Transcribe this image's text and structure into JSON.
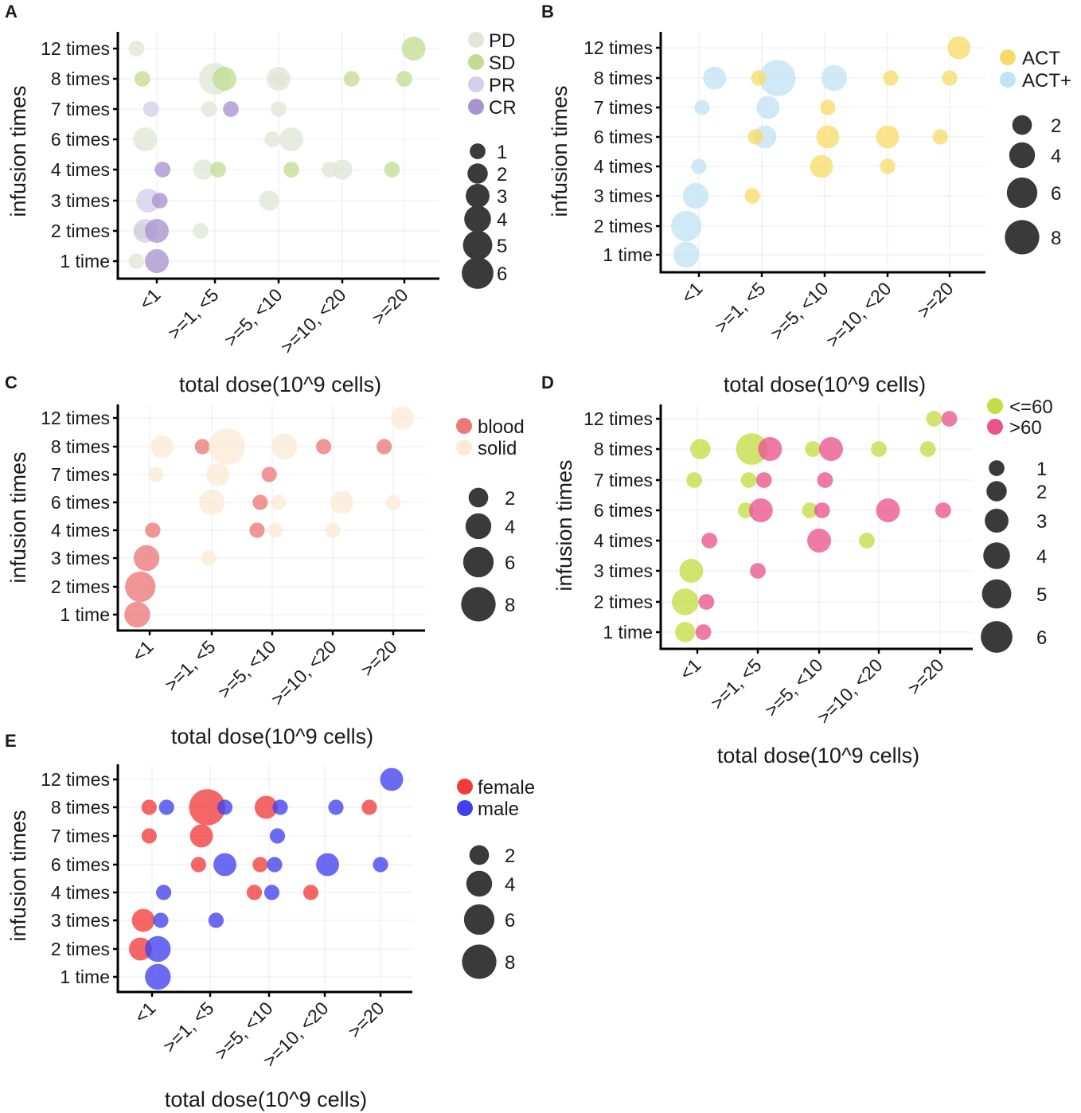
{
  "figure": {
    "x_categories": [
      "<1",
      ">=1, <5",
      ">=5, <10",
      ">=10, <20",
      ">=20"
    ],
    "y_categories_a": [
      "1 time",
      "2 times",
      "3 times",
      "4 times",
      "6 times",
      "7 times",
      "8 times",
      "12 times"
    ]
  },
  "chart_data": [
    {
      "panel": "A",
      "type": "scatter",
      "title": "",
      "xlabel": "total dose(10^9 cells)",
      "ylabel": "infusion times",
      "categories_x": [
        "<1",
        ">=1, <5",
        ">=5, <10",
        ">=10, <20",
        ">=20"
      ],
      "categories_y": [
        "1 time",
        "2 times",
        "3 times",
        "4 times",
        "6 times",
        "7 times",
        "8 times",
        "12 times"
      ],
      "groups": [
        {
          "name": "PD",
          "color": "#e2e6d6"
        },
        {
          "name": "SD",
          "color": "#c3dc95"
        },
        {
          "name": "PR",
          "color": "#d3d0ec"
        },
        {
          "name": "CR",
          "color": "#a893cf"
        }
      ],
      "size_legend": [
        1,
        2,
        3,
        4,
        5,
        6
      ],
      "points": [
        {
          "g": 0,
          "x": 0.65,
          "y": 7,
          "n": 1
        },
        {
          "g": 0,
          "x": 0.8,
          "y": 4,
          "n": 3
        },
        {
          "g": 0,
          "x": 2.9,
          "y": 4,
          "n": 1
        },
        {
          "g": 0,
          "x": 2.0,
          "y": 6,
          "n": 6
        },
        {
          "g": 0,
          "x": 1.8,
          "y": 3,
          "n": 2
        },
        {
          "g": 0,
          "x": 1.9,
          "y": 5,
          "n": 1
        },
        {
          "g": 0,
          "x": 3.0,
          "y": 6,
          "n": 1
        },
        {
          "g": 0,
          "x": 3.2,
          "y": 4,
          "n": 3
        },
        {
          "g": 0,
          "x": 3.0,
          "y": 5,
          "n": 1
        },
        {
          "g": 0,
          "x": 3.0,
          "y": 6,
          "n": 3
        },
        {
          "g": 0,
          "x": 2.85,
          "y": 2,
          "n": 2
        },
        {
          "g": 0,
          "x": 3.8,
          "y": 3,
          "n": 1
        },
        {
          "g": 0,
          "x": 4.0,
          "y": 3,
          "n": 2
        },
        {
          "g": 0,
          "x": 1.75,
          "y": 1,
          "n": 1
        },
        {
          "g": 0,
          "x": 0.65,
          "y": 0,
          "n": 1
        },
        {
          "g": 1,
          "x": 0.75,
          "y": 6,
          "n": 1
        },
        {
          "g": 1,
          "x": 2.15,
          "y": 6,
          "n": 3
        },
        {
          "g": 1,
          "x": 2.05,
          "y": 3,
          "n": 1
        },
        {
          "g": 1,
          "x": 3.2,
          "y": 3,
          "n": 1
        },
        {
          "g": 1,
          "x": 4.15,
          "y": 6,
          "n": 1
        },
        {
          "g": 1,
          "x": 4.8,
          "y": 3,
          "n": 1
        },
        {
          "g": 1,
          "x": 5.0,
          "y": 6,
          "n": 1
        },
        {
          "g": 1,
          "x": 5.15,
          "y": 7,
          "n": 3
        },
        {
          "g": 1,
          "x": 0.75,
          "y": 1,
          "n": 1
        },
        {
          "g": 2,
          "x": 0.85,
          "y": 2,
          "n": 3
        },
        {
          "g": 2,
          "x": 0.8,
          "y": 1,
          "n": 3
        },
        {
          "g": 2,
          "x": 0.9,
          "y": 5,
          "n": 1
        },
        {
          "g": 3,
          "x": 1.0,
          "y": 0,
          "n": 3
        },
        {
          "g": 3,
          "x": 1.0,
          "y": 1,
          "n": 3
        },
        {
          "g": 3,
          "x": 1.05,
          "y": 2,
          "n": 1
        },
        {
          "g": 3,
          "x": 1.1,
          "y": 3,
          "n": 1
        },
        {
          "g": 3,
          "x": 2.25,
          "y": 5,
          "n": 1
        }
      ]
    },
    {
      "panel": "B",
      "type": "scatter",
      "title": "",
      "xlabel": "total dose(10^9 cells)",
      "ylabel": "infusion times",
      "categories_x": [
        "<1",
        ">=1, <5",
        ">=5, <10",
        ">=10, <20",
        ">=20"
      ],
      "categories_y": [
        "1 time",
        "2 times",
        "3 times",
        "4 times",
        "6 times",
        "7 times",
        "8 times",
        "12 times"
      ],
      "groups": [
        {
          "name": "ACT",
          "color": "#f7db6a"
        },
        {
          "name": "ACT+",
          "color": "#c3e3f5"
        }
      ],
      "size_legend": [
        2,
        4,
        6,
        8
      ],
      "points": [
        {
          "g": 1,
          "x": 0.8,
          "y": 0,
          "n": 4
        },
        {
          "g": 1,
          "x": 0.8,
          "y": 1,
          "n": 6
        },
        {
          "g": 1,
          "x": 0.95,
          "y": 2,
          "n": 4
        },
        {
          "g": 1,
          "x": 1.0,
          "y": 3,
          "n": 1
        },
        {
          "g": 1,
          "x": 1.05,
          "y": 5,
          "n": 1
        },
        {
          "g": 1,
          "x": 1.25,
          "y": 6,
          "n": 3
        },
        {
          "g": 1,
          "x": 2.05,
          "y": 4,
          "n": 3
        },
        {
          "g": 1,
          "x": 2.1,
          "y": 5,
          "n": 3
        },
        {
          "g": 1,
          "x": 2.25,
          "y": 6,
          "n": 9
        },
        {
          "g": 1,
          "x": 3.15,
          "y": 6,
          "n": 4
        },
        {
          "g": 0,
          "x": 1.85,
          "y": 2,
          "n": 1
        },
        {
          "g": 0,
          "x": 1.9,
          "y": 4,
          "n": 1
        },
        {
          "g": 0,
          "x": 1.95,
          "y": 6,
          "n": 1
        },
        {
          "g": 0,
          "x": 2.95,
          "y": 3,
          "n": 3
        },
        {
          "g": 0,
          "x": 3.05,
          "y": 4,
          "n": 3
        },
        {
          "g": 0,
          "x": 3.05,
          "y": 5,
          "n": 1
        },
        {
          "g": 0,
          "x": 4.0,
          "y": 3,
          "n": 1
        },
        {
          "g": 0,
          "x": 4.05,
          "y": 6,
          "n": 1
        },
        {
          "g": 0,
          "x": 4.0,
          "y": 4,
          "n": 3
        },
        {
          "g": 0,
          "x": 4.85,
          "y": 4,
          "n": 1
        },
        {
          "g": 0,
          "x": 5.0,
          "y": 6,
          "n": 1
        },
        {
          "g": 0,
          "x": 5.15,
          "y": 7,
          "n": 3
        }
      ]
    },
    {
      "panel": "C",
      "type": "scatter",
      "title": "",
      "xlabel": "total dose(10^9 cells)",
      "ylabel": "infusion times",
      "categories_x": [
        "<1",
        ">=1, <5",
        ">=5, <10",
        ">=10, <20",
        ">=20"
      ],
      "categories_y": [
        "1 time",
        "2 times",
        "3 times",
        "4 times",
        "6 times",
        "7 times",
        "8 times",
        "12 times"
      ],
      "groups": [
        {
          "name": "blood",
          "color": "#ec7878"
        },
        {
          "name": "solid",
          "color": "#fbebd6"
        }
      ],
      "size_legend": [
        2,
        4,
        6,
        8
      ],
      "points": [
        {
          "g": 0,
          "x": 0.8,
          "y": 0,
          "n": 4
        },
        {
          "g": 0,
          "x": 0.85,
          "y": 1,
          "n": 6
        },
        {
          "g": 0,
          "x": 0.95,
          "y": 2,
          "n": 4
        },
        {
          "g": 0,
          "x": 1.05,
          "y": 3,
          "n": 1
        },
        {
          "g": 0,
          "x": 1.85,
          "y": 6,
          "n": 1
        },
        {
          "g": 0,
          "x": 2.8,
          "y": 4,
          "n": 1
        },
        {
          "g": 0,
          "x": 2.75,
          "y": 3,
          "n": 1
        },
        {
          "g": 0,
          "x": 2.95,
          "y": 5,
          "n": 1
        },
        {
          "g": 0,
          "x": 3.85,
          "y": 6,
          "n": 1
        },
        {
          "g": 0,
          "x": 4.85,
          "y": 6,
          "n": 1
        },
        {
          "g": 1,
          "x": 1.2,
          "y": 6,
          "n": 3
        },
        {
          "g": 1,
          "x": 1.1,
          "y": 5,
          "n": 1
        },
        {
          "g": 1,
          "x": 1.95,
          "y": 2,
          "n": 1
        },
        {
          "g": 1,
          "x": 2.0,
          "y": 4,
          "n": 4
        },
        {
          "g": 1,
          "x": 2.1,
          "y": 5,
          "n": 3
        },
        {
          "g": 1,
          "x": 2.25,
          "y": 6,
          "n": 9
        },
        {
          "g": 1,
          "x": 3.05,
          "y": 3,
          "n": 1
        },
        {
          "g": 1,
          "x": 3.1,
          "y": 4,
          "n": 1
        },
        {
          "g": 1,
          "x": 3.2,
          "y": 6,
          "n": 4
        },
        {
          "g": 1,
          "x": 4.0,
          "y": 3,
          "n": 1
        },
        {
          "g": 1,
          "x": 4.15,
          "y": 4,
          "n": 3
        },
        {
          "g": 1,
          "x": 5.0,
          "y": 4,
          "n": 1
        },
        {
          "g": 1,
          "x": 5.15,
          "y": 7,
          "n": 3
        }
      ]
    },
    {
      "panel": "D",
      "type": "scatter",
      "title": "",
      "xlabel": "total dose(10^9 cells)",
      "ylabel": "infusion times",
      "categories_x": [
        "<1",
        ">=1, <5",
        ">=5, <10",
        ">=10, <20",
        ">=20"
      ],
      "categories_y": [
        "1 time",
        "2 times",
        "3 times",
        "4 times",
        "6 times",
        "7 times",
        "8 times",
        "12 times"
      ],
      "groups": [
        {
          "name": "<=60",
          "color": "#c4dd44"
        },
        {
          "name": ">60",
          "color": "#e9548c"
        }
      ],
      "size_legend": [
        1,
        2,
        3,
        4,
        5,
        6
      ],
      "points": [
        {
          "g": 0,
          "x": 0.8,
          "y": 0,
          "n": 2
        },
        {
          "g": 0,
          "x": 0.8,
          "y": 1,
          "n": 4
        },
        {
          "g": 0,
          "x": 0.9,
          "y": 2,
          "n": 3
        },
        {
          "g": 0,
          "x": 0.95,
          "y": 5,
          "n": 1
        },
        {
          "g": 0,
          "x": 1.05,
          "y": 6,
          "n": 2
        },
        {
          "g": 0,
          "x": 1.8,
          "y": 4,
          "n": 1
        },
        {
          "g": 0,
          "x": 1.85,
          "y": 5,
          "n": 1
        },
        {
          "g": 0,
          "x": 1.9,
          "y": 6,
          "n": 6
        },
        {
          "g": 0,
          "x": 2.85,
          "y": 4,
          "n": 1
        },
        {
          "g": 0,
          "x": 2.9,
          "y": 6,
          "n": 1
        },
        {
          "g": 0,
          "x": 3.8,
          "y": 3,
          "n": 1
        },
        {
          "g": 0,
          "x": 4.0,
          "y": 6,
          "n": 1
        },
        {
          "g": 0,
          "x": 4.8,
          "y": 6,
          "n": 1
        },
        {
          "g": 0,
          "x": 4.9,
          "y": 7,
          "n": 1
        },
        {
          "g": 1,
          "x": 1.1,
          "y": 0,
          "n": 1
        },
        {
          "g": 1,
          "x": 1.15,
          "y": 1,
          "n": 1
        },
        {
          "g": 1,
          "x": 1.2,
          "y": 3,
          "n": 1
        },
        {
          "g": 1,
          "x": 2.0,
          "y": 2,
          "n": 1
        },
        {
          "g": 1,
          "x": 2.05,
          "y": 4,
          "n": 3
        },
        {
          "g": 1,
          "x": 2.1,
          "y": 5,
          "n": 1
        },
        {
          "g": 1,
          "x": 2.2,
          "y": 6,
          "n": 3
        },
        {
          "g": 1,
          "x": 3.0,
          "y": 3,
          "n": 3
        },
        {
          "g": 1,
          "x": 3.05,
          "y": 4,
          "n": 1
        },
        {
          "g": 1,
          "x": 3.1,
          "y": 5,
          "n": 1
        },
        {
          "g": 1,
          "x": 3.2,
          "y": 6,
          "n": 3
        },
        {
          "g": 1,
          "x": 4.15,
          "y": 4,
          "n": 3
        },
        {
          "g": 1,
          "x": 5.05,
          "y": 4,
          "n": 1
        },
        {
          "g": 1,
          "x": 5.15,
          "y": 7,
          "n": 1
        }
      ]
    },
    {
      "panel": "E",
      "type": "scatter",
      "title": "",
      "xlabel": "total dose(10^9 cells)",
      "ylabel": "infusion times",
      "categories_x": [
        "<1",
        ">=1, <5",
        ">=5, <10",
        ">=10, <20",
        ">=20"
      ],
      "categories_y": [
        "1 time",
        "2 times",
        "3 times",
        "4 times",
        "6 times",
        "7 times",
        "8 times",
        "12 times"
      ],
      "groups": [
        {
          "name": "female",
          "color": "#f23b3b"
        },
        {
          "name": "male",
          "color": "#4040f0"
        }
      ],
      "size_legend": [
        2,
        4,
        6,
        8
      ],
      "points": [
        {
          "g": 0,
          "x": 0.8,
          "y": 1,
          "n": 3
        },
        {
          "g": 0,
          "x": 0.85,
          "y": 2,
          "n": 3
        },
        {
          "g": 0,
          "x": 0.95,
          "y": 5,
          "n": 1
        },
        {
          "g": 0,
          "x": 0.95,
          "y": 6,
          "n": 1
        },
        {
          "g": 0,
          "x": 1.8,
          "y": 4,
          "n": 1
        },
        {
          "g": 0,
          "x": 1.85,
          "y": 5,
          "n": 3
        },
        {
          "g": 0,
          "x": 1.95,
          "y": 6,
          "n": 9
        },
        {
          "g": 0,
          "x": 2.75,
          "y": 3,
          "n": 1
        },
        {
          "g": 0,
          "x": 2.85,
          "y": 4,
          "n": 1
        },
        {
          "g": 0,
          "x": 2.95,
          "y": 6,
          "n": 3
        },
        {
          "g": 0,
          "x": 3.75,
          "y": 3,
          "n": 1
        },
        {
          "g": 0,
          "x": 4.8,
          "y": 6,
          "n": 1
        },
        {
          "g": 1,
          "x": 1.1,
          "y": 0,
          "n": 4
        },
        {
          "g": 1,
          "x": 1.1,
          "y": 1,
          "n": 4
        },
        {
          "g": 1,
          "x": 1.15,
          "y": 2,
          "n": 1
        },
        {
          "g": 1,
          "x": 1.2,
          "y": 3,
          "n": 1
        },
        {
          "g": 1,
          "x": 1.25,
          "y": 6,
          "n": 1
        },
        {
          "g": 1,
          "x": 2.1,
          "y": 2,
          "n": 1
        },
        {
          "g": 1,
          "x": 2.25,
          "y": 4,
          "n": 3
        },
        {
          "g": 1,
          "x": 2.25,
          "y": 6,
          "n": 1
        },
        {
          "g": 1,
          "x": 3.05,
          "y": 3,
          "n": 1
        },
        {
          "g": 1,
          "x": 3.1,
          "y": 4,
          "n": 1
        },
        {
          "g": 1,
          "x": 3.15,
          "y": 5,
          "n": 1
        },
        {
          "g": 1,
          "x": 3.2,
          "y": 6,
          "n": 1
        },
        {
          "g": 1,
          "x": 4.05,
          "y": 4,
          "n": 3
        },
        {
          "g": 1,
          "x": 4.2,
          "y": 6,
          "n": 1
        },
        {
          "g": 1,
          "x": 5.0,
          "y": 4,
          "n": 1
        },
        {
          "g": 1,
          "x": 5.2,
          "y": 7,
          "n": 3
        }
      ]
    }
  ]
}
